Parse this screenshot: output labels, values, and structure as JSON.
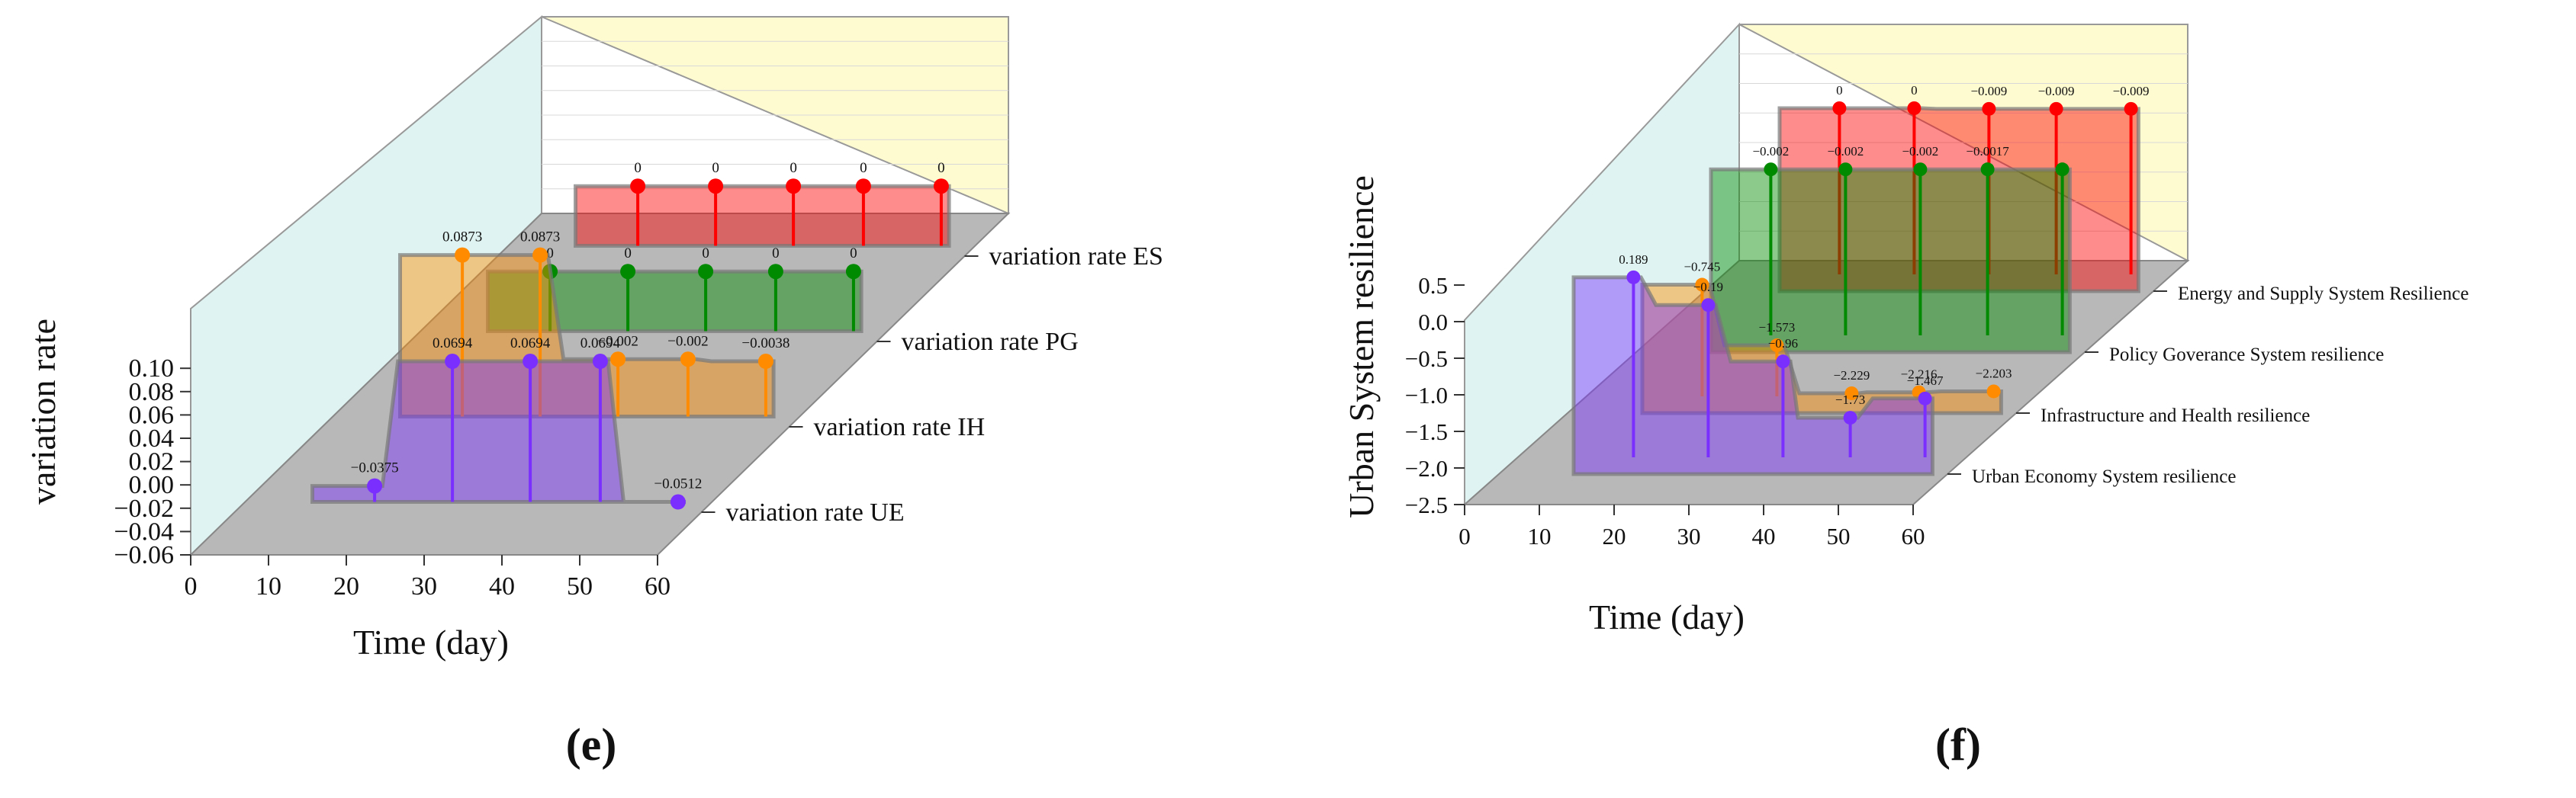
{
  "chart_data": [
    {
      "type": "3d-area-stem",
      "panel_label": "(e)",
      "xlabel": "Time (day)",
      "ylabel": "variation rate",
      "xlim": [
        0,
        60
      ],
      "xticks": [
        "0",
        "10",
        "20",
        "30",
        "40",
        "50",
        "60"
      ],
      "ylim": [
        -0.06,
        0.1
      ],
      "yticks": [
        "0.10",
        "0.08",
        "0.06",
        "0.04",
        "0.02",
        "0.00",
        "−0.02",
        "−0.04",
        "−0.06"
      ],
      "series": [
        {
          "name": "variation rate UE",
          "color": "#7b2fff",
          "x": [
            18,
            28,
            38,
            47,
            57
          ],
          "values": [
            -0.0375,
            0.0694,
            0.0694,
            0.0694,
            -0.0512
          ],
          "labels": [
            "−0.0375",
            "0.0694",
            "0.0694",
            "0.0694",
            "−0.0512"
          ]
        },
        {
          "name": "variation rate IH",
          "color": "#ff8c00",
          "x": [
            18,
            28,
            38,
            47,
            57
          ],
          "values": [
            0.0873,
            0.0873,
            -0.002,
            -0.002,
            -0.0038
          ],
          "labels": [
            "0.0873",
            "0.0873",
            "−0.002",
            "−0.002",
            "−0.0038"
          ]
        },
        {
          "name": "variation rate PG",
          "color": "#008a00",
          "x": [
            18,
            28,
            38,
            47,
            57
          ],
          "values": [
            0,
            0,
            0,
            0,
            0
          ],
          "labels": [
            "0",
            "0",
            "0",
            "0",
            "0"
          ]
        },
        {
          "name": "variation rate ES",
          "color": "#ff0000",
          "x": [
            18,
            28,
            38,
            47,
            57
          ],
          "values": [
            0,
            0,
            0,
            0,
            0
          ],
          "labels": [
            "0",
            "0",
            "0",
            "0",
            "0"
          ]
        }
      ]
    },
    {
      "type": "3d-area-stem",
      "panel_label": "(f)",
      "xlabel": "Time (day)",
      "ylabel": "Urban System resilience",
      "xlim": [
        0,
        60
      ],
      "xticks": [
        "0",
        "10",
        "20",
        "30",
        "40",
        "50",
        "60"
      ],
      "ylim": [
        -2.5,
        0.5
      ],
      "yticks": [
        "0.5",
        "0.0",
        "−0.5",
        "−1.0",
        "−1.5",
        "−2.0",
        "−2.5"
      ],
      "series": [
        {
          "name": "Urban Economy System resilience",
          "color": "#7b2fff",
          "x": [
            18,
            28,
            38,
            47,
            57
          ],
          "values": [
            0.189,
            -0.19,
            -0.96,
            -1.73,
            -1.467
          ],
          "labels": [
            "0.189",
            "−0.19",
            "−0.96",
            "−1.73",
            "−1.467"
          ]
        },
        {
          "name": "Infrastructure and Health resilience",
          "color": "#ff8c00",
          "x": [
            18,
            28,
            38,
            47,
            57
          ],
          "values": [
            -0.745,
            -1.573,
            -2.229,
            -2.216,
            -2.203
          ],
          "labels": [
            "−0.745",
            "−1.573",
            "−2.229",
            "−2.216",
            "−2.203"
          ]
        },
        {
          "name": "Policy Goverance System resilience",
          "color": "#008a00",
          "x": [
            18,
            28,
            38,
            47,
            57
          ],
          "values": [
            -0.002,
            -0.002,
            -0.002,
            -0.0017,
            -0.0017
          ],
          "labels": [
            "−0.002",
            "−0.002",
            "−0.002",
            "−0.0017",
            ""
          ]
        },
        {
          "name": "Energy and Supply System Resilience",
          "color": "#ff0000",
          "x": [
            18,
            28,
            38,
            47,
            57
          ],
          "values": [
            0,
            0,
            -0.009,
            -0.009,
            -0.009
          ],
          "labels": [
            "0",
            "0",
            "−0.009",
            "−0.009",
            "−0.009"
          ]
        }
      ]
    }
  ]
}
